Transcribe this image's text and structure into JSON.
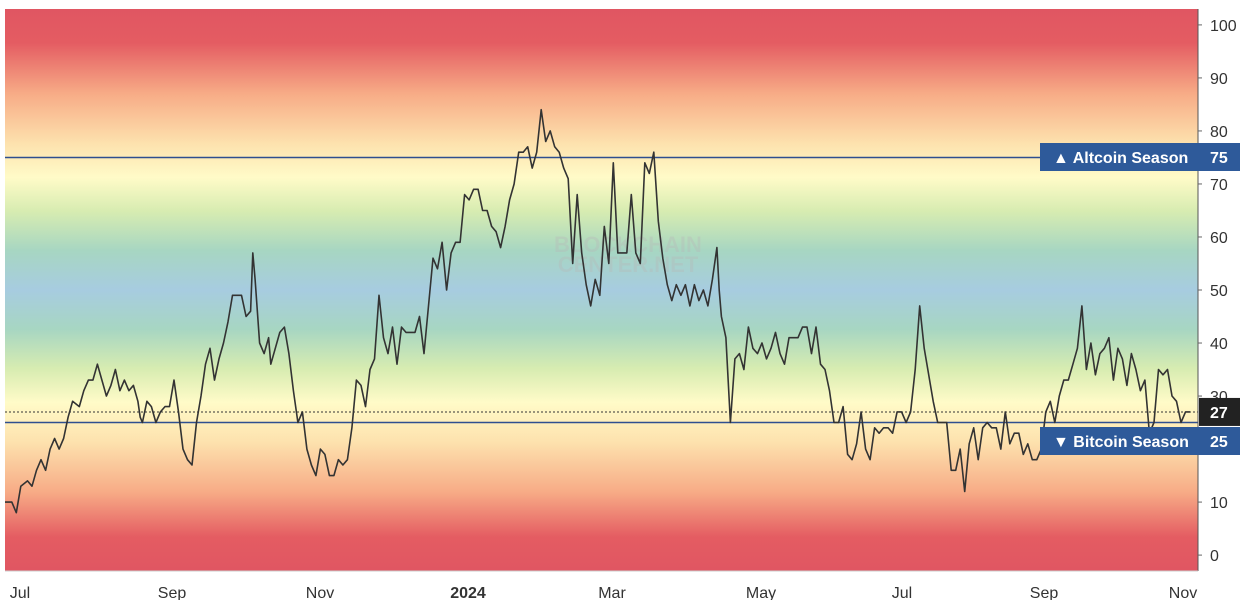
{
  "chart_data": {
    "type": "line",
    "series": [
      {
        "values": [
          [
            0,
            10
          ],
          [
            3,
            10
          ],
          [
            5,
            8
          ],
          [
            7,
            13
          ],
          [
            10,
            14
          ],
          [
            12,
            13
          ],
          [
            14,
            16
          ],
          [
            16,
            18
          ],
          [
            18,
            16
          ],
          [
            20,
            20
          ],
          [
            22,
            22
          ],
          [
            24,
            20
          ],
          [
            26,
            22
          ],
          [
            28,
            26
          ],
          [
            30,
            29
          ],
          [
            33,
            28
          ],
          [
            35,
            31
          ],
          [
            37,
            33
          ],
          [
            39,
            33
          ],
          [
            41,
            36
          ],
          [
            43,
            33
          ],
          [
            45,
            30
          ],
          [
            47,
            32
          ],
          [
            49,
            35
          ],
          [
            51,
            31
          ],
          [
            53,
            33
          ],
          [
            55,
            31
          ],
          [
            57,
            32
          ],
          [
            59,
            29
          ],
          [
            60,
            26
          ],
          [
            61,
            25
          ],
          [
            63,
            29
          ],
          [
            65,
            28
          ],
          [
            67,
            25
          ],
          [
            69,
            27
          ],
          [
            71,
            28
          ],
          [
            73,
            28
          ],
          [
            75,
            33
          ],
          [
            77,
            27
          ],
          [
            79,
            20
          ],
          [
            81,
            18
          ],
          [
            83,
            17
          ],
          [
            85,
            25
          ],
          [
            87,
            30
          ],
          [
            89,
            36
          ],
          [
            91,
            39
          ],
          [
            93,
            33
          ],
          [
            95,
            37
          ],
          [
            97,
            40
          ],
          [
            99,
            44
          ],
          [
            101,
            49
          ],
          [
            103,
            49
          ],
          [
            105,
            49
          ],
          [
            107,
            45
          ],
          [
            109,
            46
          ],
          [
            110,
            57
          ],
          [
            111,
            52
          ],
          [
            113,
            40
          ],
          [
            115,
            38
          ],
          [
            117,
            41
          ],
          [
            118,
            36
          ],
          [
            120,
            39
          ],
          [
            122,
            42
          ],
          [
            124,
            43
          ],
          [
            126,
            38
          ],
          [
            128,
            31
          ],
          [
            130,
            25
          ],
          [
            132,
            27
          ],
          [
            134,
            20
          ],
          [
            136,
            17
          ],
          [
            138,
            15
          ],
          [
            140,
            20
          ],
          [
            142,
            19
          ],
          [
            144,
            15
          ],
          [
            146,
            15
          ],
          [
            148,
            18
          ],
          [
            150,
            17
          ],
          [
            152,
            18
          ],
          [
            154,
            24
          ],
          [
            156,
            33
          ],
          [
            158,
            32
          ],
          [
            160,
            28
          ],
          [
            162,
            35
          ],
          [
            164,
            37
          ],
          [
            166,
            49
          ],
          [
            168,
            41
          ],
          [
            170,
            38
          ],
          [
            172,
            43
          ],
          [
            174,
            36
          ],
          [
            176,
            43
          ],
          [
            178,
            42
          ],
          [
            180,
            42
          ],
          [
            182,
            42
          ],
          [
            184,
            45
          ],
          [
            186,
            38
          ],
          [
            188,
            47
          ],
          [
            190,
            56
          ],
          [
            192,
            54
          ],
          [
            194,
            59
          ],
          [
            196,
            50
          ],
          [
            198,
            57
          ],
          [
            200,
            59
          ],
          [
            202,
            59
          ],
          [
            204,
            68
          ],
          [
            206,
            67
          ],
          [
            208,
            69
          ],
          [
            210,
            69
          ],
          [
            212,
            65
          ],
          [
            214,
            65
          ],
          [
            216,
            62
          ],
          [
            218,
            61
          ],
          [
            220,
            58
          ],
          [
            222,
            62
          ],
          [
            224,
            67
          ],
          [
            226,
            70
          ],
          [
            228,
            76
          ],
          [
            230,
            76
          ],
          [
            232,
            77
          ],
          [
            234,
            73
          ],
          [
            236,
            76
          ],
          [
            238,
            84
          ],
          [
            240,
            78
          ],
          [
            242,
            80
          ],
          [
            244,
            77
          ],
          [
            246,
            76
          ],
          [
            248,
            73
          ],
          [
            250,
            71
          ],
          [
            252,
            55
          ],
          [
            254,
            68
          ],
          [
            256,
            57
          ],
          [
            258,
            51
          ],
          [
            260,
            47
          ],
          [
            262,
            52
          ],
          [
            264,
            49
          ],
          [
            266,
            62
          ],
          [
            268,
            55
          ],
          [
            270,
            74
          ],
          [
            272,
            57
          ],
          [
            274,
            57
          ],
          [
            276,
            57
          ],
          [
            278,
            68
          ],
          [
            280,
            57
          ],
          [
            282,
            55
          ],
          [
            284,
            74
          ],
          [
            286,
            72
          ],
          [
            288,
            76
          ],
          [
            290,
            63
          ],
          [
            292,
            56
          ],
          [
            294,
            51
          ],
          [
            296,
            48
          ],
          [
            298,
            51
          ],
          [
            300,
            49
          ],
          [
            302,
            51
          ],
          [
            304,
            47
          ],
          [
            306,
            51
          ],
          [
            308,
            48
          ],
          [
            310,
            50
          ],
          [
            312,
            47
          ],
          [
            314,
            52
          ],
          [
            316,
            58
          ],
          [
            317,
            50
          ],
          [
            318,
            45
          ],
          [
            320,
            41
          ],
          [
            322,
            25
          ],
          [
            324,
            37
          ],
          [
            326,
            38
          ],
          [
            328,
            35
          ],
          [
            330,
            43
          ],
          [
            332,
            39
          ],
          [
            334,
            38
          ],
          [
            336,
            40
          ],
          [
            338,
            37
          ],
          [
            340,
            39
          ],
          [
            342,
            42
          ],
          [
            344,
            38
          ],
          [
            346,
            36
          ],
          [
            348,
            41
          ],
          [
            350,
            41
          ],
          [
            352,
            41
          ],
          [
            354,
            43
          ],
          [
            356,
            43
          ],
          [
            358,
            38
          ],
          [
            360,
            43
          ],
          [
            362,
            36
          ],
          [
            364,
            35
          ],
          [
            366,
            31
          ],
          [
            368,
            25
          ],
          [
            370,
            25
          ],
          [
            372,
            28
          ],
          [
            374,
            19
          ],
          [
            376,
            18
          ],
          [
            378,
            21
          ],
          [
            380,
            27
          ],
          [
            382,
            20
          ],
          [
            384,
            18
          ],
          [
            386,
            24
          ],
          [
            388,
            23
          ],
          [
            390,
            24
          ],
          [
            392,
            24
          ],
          [
            394,
            23
          ],
          [
            396,
            27
          ],
          [
            398,
            27
          ],
          [
            400,
            25
          ],
          [
            402,
            27
          ],
          [
            404,
            35
          ],
          [
            406,
            47
          ],
          [
            408,
            39
          ],
          [
            410,
            34
          ],
          [
            412,
            29
          ],
          [
            414,
            25
          ],
          [
            416,
            25
          ],
          [
            418,
            25
          ],
          [
            420,
            16
          ],
          [
            422,
            16
          ],
          [
            424,
            20
          ],
          [
            426,
            12
          ],
          [
            428,
            21
          ],
          [
            430,
            24
          ],
          [
            432,
            18
          ],
          [
            434,
            24
          ],
          [
            436,
            25
          ],
          [
            438,
            24
          ],
          [
            440,
            24
          ],
          [
            442,
            20
          ],
          [
            444,
            27
          ],
          [
            446,
            21
          ],
          [
            448,
            23
          ],
          [
            450,
            23
          ],
          [
            452,
            19
          ],
          [
            454,
            21
          ],
          [
            456,
            18
          ],
          [
            458,
            18
          ],
          [
            460,
            20
          ],
          [
            462,
            27
          ],
          [
            464,
            29
          ],
          [
            466,
            25
          ],
          [
            468,
            30
          ],
          [
            470,
            33
          ],
          [
            472,
            33
          ],
          [
            474,
            36
          ],
          [
            476,
            39
          ],
          [
            478,
            47
          ],
          [
            480,
            35
          ],
          [
            482,
            40
          ],
          [
            484,
            34
          ],
          [
            486,
            38
          ],
          [
            488,
            39
          ],
          [
            490,
            41
          ],
          [
            492,
            33
          ],
          [
            494,
            39
          ],
          [
            496,
            37
          ],
          [
            498,
            32
          ],
          [
            500,
            38
          ],
          [
            502,
            35
          ],
          [
            504,
            31
          ],
          [
            506,
            33
          ],
          [
            508,
            23
          ],
          [
            510,
            25
          ],
          [
            512,
            35
          ],
          [
            514,
            34
          ],
          [
            516,
            35
          ],
          [
            518,
            30
          ],
          [
            520,
            29
          ],
          [
            522,
            25
          ],
          [
            524,
            27
          ],
          [
            526,
            27
          ]
        ]
      }
    ],
    "x_ticks": [
      "Jul",
      "Sep",
      "Nov",
      "2024",
      "Mar",
      "May",
      "Jul",
      "Sep",
      "Nov"
    ],
    "y_ticks": [
      0,
      10,
      20,
      30,
      40,
      50,
      60,
      70,
      80,
      90,
      100
    ],
    "ylim": [
      -3,
      103
    ],
    "current_value": "27",
    "reference_lines": [
      {
        "label": "▲ Altcoin Season",
        "value": 75
      },
      {
        "label": "▼ Bitcoin Season",
        "value": 25
      }
    ],
    "watermark": "BLOCKCHAIN CENTER.NET",
    "colors": {
      "line": "#333333",
      "reference_line": "#2f4f8f",
      "reference_label_bg": "#2e5a9a",
      "current_label_bg": "#222222",
      "gradient": [
        "#e05560",
        "#f8b07a",
        "#fef8c8",
        "#a8d6a0",
        "#a8cde0",
        "#a8d6a0",
        "#fef8c8",
        "#f8b07a",
        "#e05560"
      ]
    }
  }
}
